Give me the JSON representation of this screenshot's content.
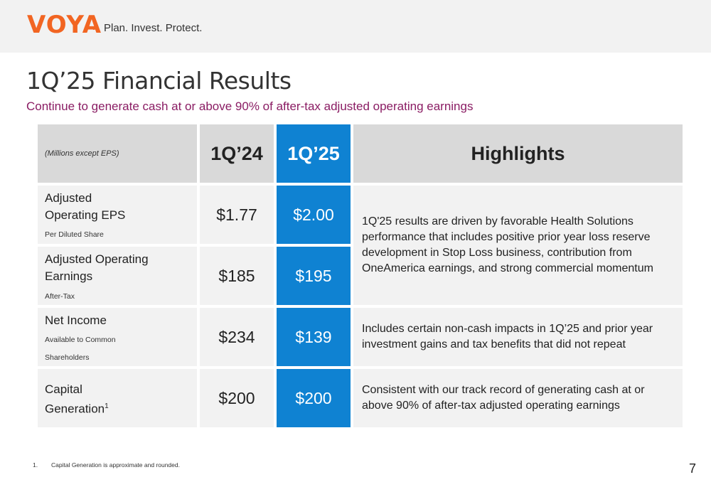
{
  "brand": {
    "logo_text": "VOYA",
    "tagline": "Plan. Invest. Protect."
  },
  "title": "1Q’25 Financial Results",
  "subtitle": "Continue to generate cash at or above 90% of after-tax adjusted operating earnings",
  "table": {
    "header": {
      "note": "(Millions except EPS)",
      "col1": "1Q’24",
      "col2": "1Q’25",
      "highlights": "Highlights"
    },
    "rows": [
      {
        "label_lines": [
          "Adjusted",
          "Operating EPS"
        ],
        "sub": "Per Diluted Share",
        "v1": "$1.77",
        "v2": "$2.00"
      },
      {
        "label_lines": [
          "Adjusted Operating",
          "Earnings"
        ],
        "sub": "After-Tax",
        "v1": "$185",
        "v2": "$195"
      },
      {
        "label_lines": [
          "Net Income"
        ],
        "sub_lines": [
          "Available to Common",
          "Shareholders"
        ],
        "v1": "$234",
        "v2": "$139"
      },
      {
        "label_lines": [
          "Capital",
          "Generation"
        ],
        "sup": "1",
        "v1": "$200",
        "v2": "$200"
      }
    ],
    "highlights": [
      "1Q'25 results are driven by favorable Health Solutions performance that includes positive prior year loss reserve development in Stop Loss business, contribution from OneAmerica earnings, and strong commercial momentum",
      "Includes certain non-cash impacts in 1Q’25 and prior year investment gains and tax benefits that did not repeat",
      "Consistent with our track record of generating cash at or above 90% of after-tax adjusted operating earnings"
    ]
  },
  "footnote": {
    "num": "1.",
    "text": "Capital Generation is approximate and rounded."
  },
  "page_number": "7",
  "colors": {
    "accent_blue": "#0f82d2",
    "brand_orange": "#f26522",
    "subtitle_plum": "#8a1c63"
  }
}
